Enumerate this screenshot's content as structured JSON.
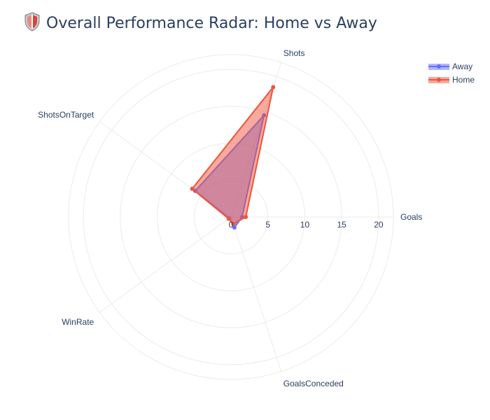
{
  "chart_data": {
    "type": "radar",
    "title": "Overall Performance Radar: Home vs Away",
    "title_icon": "shield-icon",
    "axes": [
      "Goals",
      "GoalsConceded",
      "WinRate",
      "ShotsOnTarget",
      "Shots"
    ],
    "radial_ticks": [
      "0",
      "5",
      "10",
      "15",
      "20"
    ],
    "radial_range": [
      0,
      22
    ],
    "grid": true,
    "legend_position": "top-right",
    "series": [
      {
        "name": "Away",
        "values": [
          1.5,
          1.5,
          0.3,
          6.0,
          14.5
        ],
        "color": "#636efa"
      },
      {
        "name": "Home",
        "values": [
          2.0,
          1.0,
          0.4,
          6.5,
          18.5
        ],
        "color": "#ef553b"
      }
    ]
  }
}
